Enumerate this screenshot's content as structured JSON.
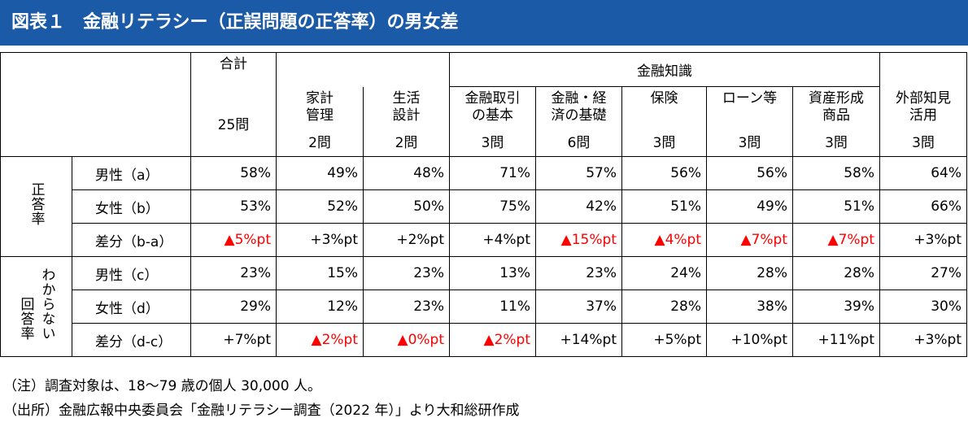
{
  "title": "図表１　金融リテラシー（正誤問題の正答率）の男女差",
  "header": {
    "total": {
      "label": "合計",
      "count": "25問"
    },
    "groups": {
      "knowledge": "金融知識"
    },
    "columns": [
      {
        "label": "家計\n管理",
        "count": "2問"
      },
      {
        "label": "生活\n設計",
        "count": "2問"
      },
      {
        "label": "金融取引\nの基本",
        "count": "3問"
      },
      {
        "label": "金融・経\n済の基礎",
        "count": "6問"
      },
      {
        "label": "保険",
        "count": "3問"
      },
      {
        "label": "ローン等",
        "count": "3問"
      },
      {
        "label": "資産形成\n商品",
        "count": "3問"
      },
      {
        "label": "外部知見\n活用",
        "count": "3問"
      }
    ]
  },
  "sections": {
    "correct": {
      "label": "正答率",
      "rows": [
        {
          "label": "男性（a）",
          "values": [
            "58%",
            "49%",
            "48%",
            "71%",
            "57%",
            "56%",
            "56%",
            "58%",
            "64%"
          ]
        },
        {
          "label": "女性（b）",
          "values": [
            "53%",
            "52%",
            "50%",
            "75%",
            "42%",
            "51%",
            "49%",
            "51%",
            "66%"
          ]
        },
        {
          "label": "差分（b-a）",
          "values": [
            "▲5%pt",
            "+3%pt",
            "+2%pt",
            "+4%pt",
            "▲15%pt",
            "▲4%pt",
            "▲7%pt",
            "▲7%pt",
            "+3%pt"
          ]
        }
      ]
    },
    "unknown": {
      "label_left": "回答率",
      "label_right": "わからない",
      "rows": [
        {
          "label": "男性（c）",
          "values": [
            "23%",
            "15%",
            "23%",
            "13%",
            "23%",
            "24%",
            "28%",
            "28%",
            "27%"
          ]
        },
        {
          "label": "女性（d）",
          "values": [
            "29%",
            "12%",
            "23%",
            "11%",
            "37%",
            "28%",
            "38%",
            "39%",
            "30%"
          ]
        },
        {
          "label": "差分（d-c）",
          "values": [
            "+7%pt",
            "▲2%pt",
            "▲0%pt",
            "▲2%pt",
            "+14%pt",
            "+5%pt",
            "+10%pt",
            "+11%pt",
            "+3%pt"
          ]
        }
      ]
    }
  },
  "notes": {
    "note": "（注）調査対象は、18～79 歳の個人 30,000 人。",
    "source": "（出所）金融広報中央委員会「金融リテラシー調査（2022 年）」より大和総研作成"
  },
  "colors": {
    "title_bg": "#1a5aa6",
    "negative": "#ff0000"
  }
}
